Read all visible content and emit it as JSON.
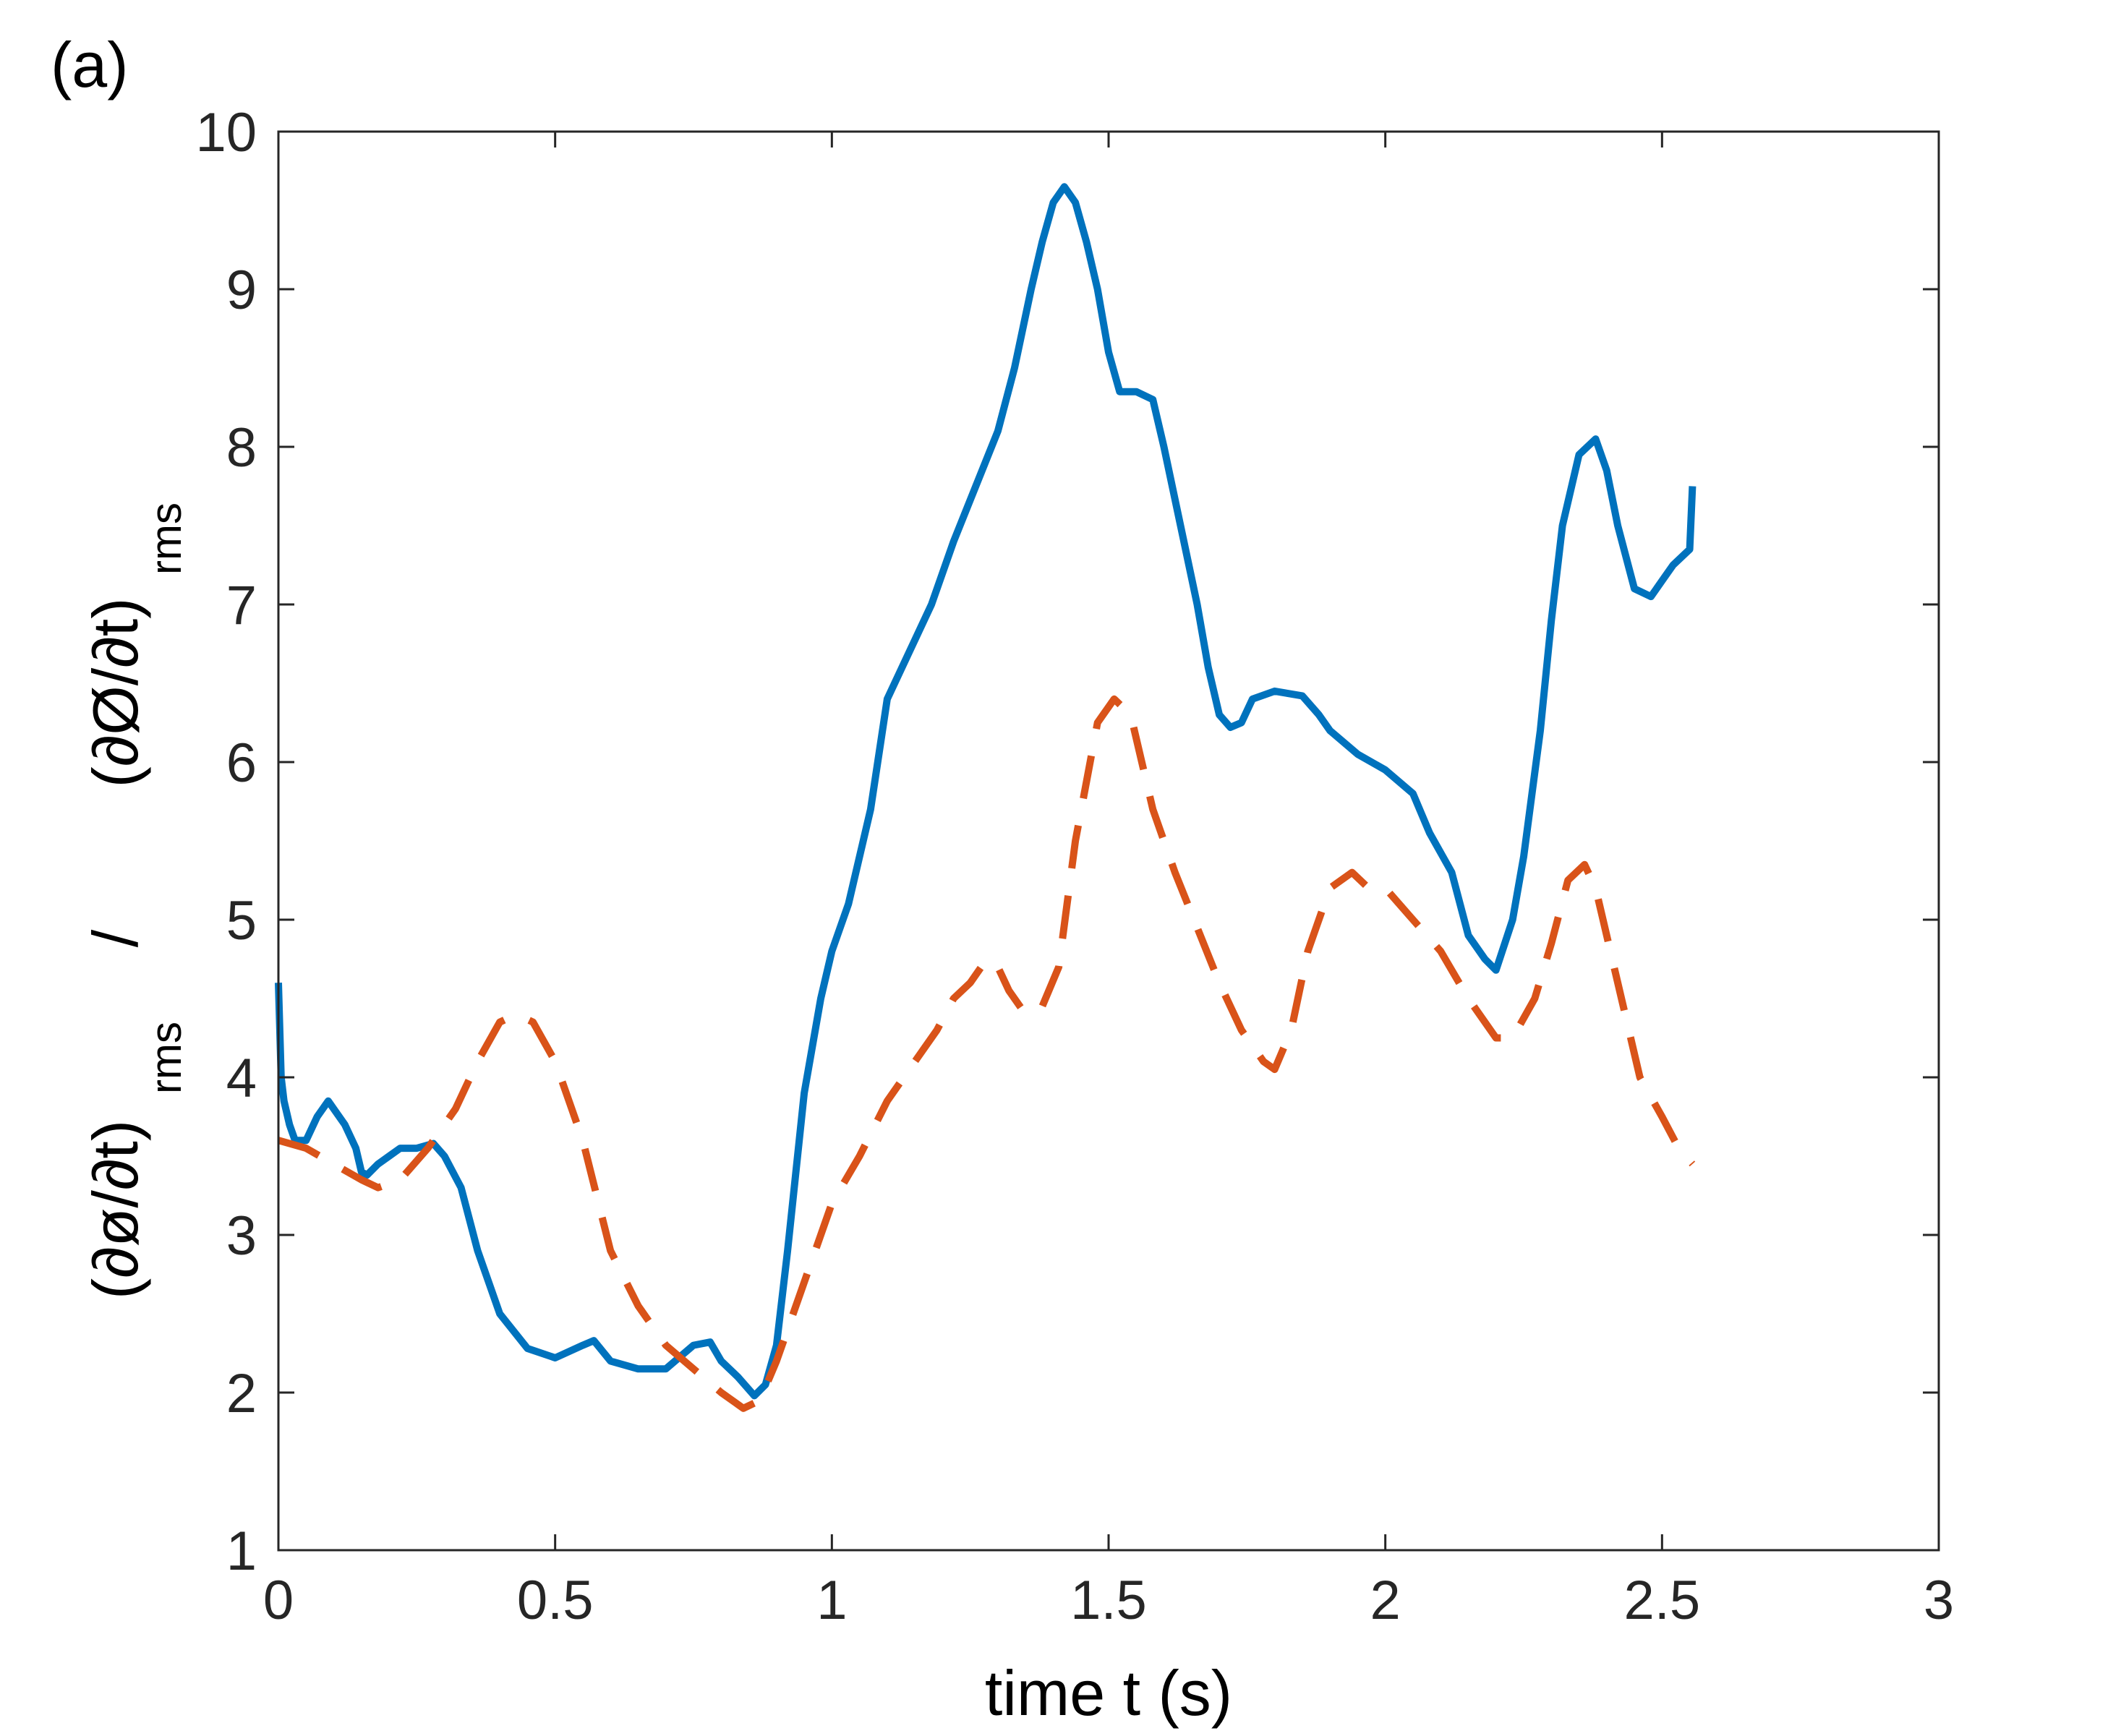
{
  "chart_data": {
    "type": "line",
    "panel_label": "(a)",
    "xlabel": "time  t (s)",
    "ylabel": {
      "part1_main": "(∂ø/∂t)",
      "part1_sub": "rms",
      "separator": "/",
      "part2_main": "(∂Ø/∂t)",
      "part2_sub": "rms"
    },
    "xlim": [
      0,
      3
    ],
    "ylim": [
      1,
      10
    ],
    "xticks": [
      0,
      0.5,
      1,
      1.5,
      2,
      2.5,
      3
    ],
    "xtick_labels": [
      "0",
      "0.5",
      "1",
      "1.5",
      "2",
      "2.5",
      "3"
    ],
    "yticks": [
      1,
      2,
      3,
      4,
      5,
      6,
      7,
      8,
      9,
      10
    ],
    "ytick_labels": [
      "1",
      "2",
      "3",
      "4",
      "5",
      "6",
      "7",
      "8",
      "9",
      "10"
    ],
    "grid": false,
    "series": [
      {
        "style": "solid",
        "color": "#0072BD",
        "x": [
          0,
          0.005,
          0.01,
          0.02,
          0.03,
          0.05,
          0.07,
          0.09,
          0.1,
          0.12,
          0.14,
          0.15,
          0.16,
          0.18,
          0.2,
          0.22,
          0.25,
          0.28,
          0.3,
          0.33,
          0.36,
          0.4,
          0.45,
          0.5,
          0.55,
          0.57,
          0.6,
          0.65,
          0.7,
          0.75,
          0.78,
          0.8,
          0.83,
          0.86,
          0.88,
          0.9,
          0.92,
          0.95,
          0.98,
          1.0,
          1.03,
          1.07,
          1.1,
          1.14,
          1.18,
          1.22,
          1.26,
          1.3,
          1.33,
          1.36,
          1.38,
          1.4,
          1.42,
          1.44,
          1.46,
          1.48,
          1.5,
          1.52,
          1.55,
          1.58,
          1.6,
          1.63,
          1.66,
          1.68,
          1.7,
          1.72,
          1.74,
          1.76,
          1.8,
          1.85,
          1.88,
          1.9,
          1.95,
          2.0,
          2.05,
          2.08,
          2.12,
          2.15,
          2.18,
          2.2,
          2.23,
          2.25,
          2.28,
          2.3,
          2.32,
          2.35,
          2.38,
          2.4,
          2.42,
          2.45,
          2.48,
          2.5,
          2.52,
          2.55,
          2.555
        ],
        "y": [
          4.6,
          4.0,
          3.85,
          3.7,
          3.6,
          3.6,
          3.75,
          3.85,
          3.8,
          3.7,
          3.55,
          3.4,
          3.38,
          3.45,
          3.5,
          3.55,
          3.55,
          3.58,
          3.5,
          3.3,
          2.9,
          2.5,
          2.28,
          2.22,
          2.3,
          2.33,
          2.2,
          2.15,
          2.15,
          2.3,
          2.32,
          2.2,
          2.1,
          1.98,
          2.05,
          2.3,
          2.9,
          3.9,
          4.5,
          4.8,
          5.1,
          5.7,
          6.4,
          6.7,
          7.0,
          7.4,
          7.75,
          8.1,
          8.5,
          9.0,
          9.3,
          9.55,
          9.65,
          9.55,
          9.3,
          9.0,
          8.6,
          8.35,
          8.35,
          8.3,
          8.0,
          7.5,
          7.0,
          6.6,
          6.3,
          6.22,
          6.25,
          6.4,
          6.45,
          6.42,
          6.3,
          6.2,
          6.05,
          5.95,
          5.8,
          5.55,
          5.3,
          4.9,
          4.75,
          4.68,
          5.0,
          5.4,
          6.2,
          6.9,
          7.5,
          7.95,
          8.05,
          7.85,
          7.5,
          7.1,
          7.05,
          7.15,
          7.25,
          7.35,
          7.75
        ]
      },
      {
        "style": "dashed",
        "color": "#D95319",
        "x": [
          0,
          0.05,
          0.1,
          0.15,
          0.18,
          0.22,
          0.27,
          0.32,
          0.36,
          0.4,
          0.43,
          0.46,
          0.5,
          0.55,
          0.6,
          0.65,
          0.7,
          0.75,
          0.8,
          0.84,
          0.87,
          0.9,
          0.95,
          1.0,
          1.05,
          1.1,
          1.15,
          1.19,
          1.22,
          1.25,
          1.28,
          1.3,
          1.32,
          1.35,
          1.38,
          1.41,
          1.44,
          1.48,
          1.51,
          1.54,
          1.56,
          1.58,
          1.62,
          1.66,
          1.7,
          1.74,
          1.78,
          1.8,
          1.83,
          1.86,
          1.9,
          1.94,
          1.97,
          2.0,
          2.05,
          2.1,
          2.15,
          2.2,
          2.23,
          2.27,
          2.3,
          2.33,
          2.36,
          2.38,
          2.42,
          2.46,
          2.5,
          2.53,
          2.555
        ],
        "y": [
          3.6,
          3.55,
          3.45,
          3.35,
          3.3,
          3.35,
          3.55,
          3.8,
          4.1,
          4.35,
          4.4,
          4.35,
          4.1,
          3.6,
          2.9,
          2.55,
          2.3,
          2.15,
          2.0,
          1.9,
          1.95,
          2.2,
          2.7,
          3.2,
          3.5,
          3.85,
          4.1,
          4.3,
          4.5,
          4.6,
          4.75,
          4.7,
          4.55,
          4.4,
          4.45,
          4.7,
          5.5,
          6.25,
          6.4,
          6.3,
          6.0,
          5.7,
          5.3,
          4.95,
          4.6,
          4.3,
          4.1,
          4.05,
          4.3,
          4.8,
          5.2,
          5.3,
          5.2,
          5.2,
          5.0,
          4.8,
          4.5,
          4.25,
          4.25,
          4.5,
          4.85,
          5.25,
          5.35,
          5.2,
          4.6,
          4.0,
          3.75,
          3.55,
          3.45
        ]
      }
    ]
  }
}
